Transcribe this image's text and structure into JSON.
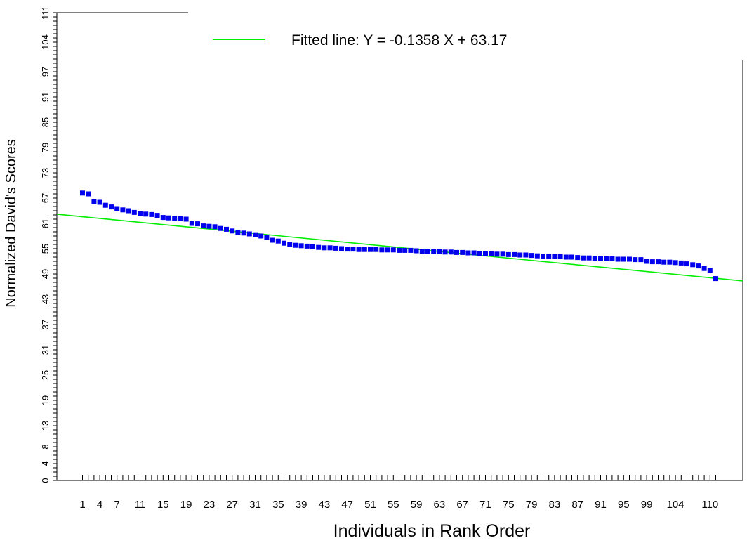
{
  "chart_data": {
    "type": "scatter",
    "xlabel": "Individuals in Rank Order",
    "ylabel": "Normalized David's Scores",
    "legend": {
      "line_label": "Fitted line:  Y =  -0.1358 X + 63.17",
      "placement": "top-center"
    },
    "x_tick_labels": [
      "1",
      "4",
      "7",
      "11",
      "15",
      "19",
      "23",
      "27",
      "31",
      "35",
      "39",
      "43",
      "47",
      "51",
      "55",
      "59",
      "63",
      "67",
      "71",
      "75",
      "79",
      "83",
      "87",
      "91",
      "95",
      "99",
      "104",
      "110"
    ],
    "y_tick_labels": [
      "0",
      "4",
      "8",
      "13",
      "19",
      "25",
      "31",
      "37",
      "43",
      "49",
      "55",
      "61",
      "67",
      "73",
      "79",
      "85",
      "91",
      "97",
      "104",
      "111"
    ],
    "xlim": [
      0,
      116.5
    ],
    "ylim": [
      0,
      111
    ],
    "colors": {
      "points": "#0000ee",
      "fit_line": "#00ee00",
      "axis": "#000000"
    },
    "fit_line": {
      "slope": -0.1358,
      "intercept": 63.17
    },
    "series": [
      {
        "x": [
          1,
          2,
          3,
          4,
          5,
          6,
          7,
          8,
          9,
          10,
          11,
          12,
          13,
          14,
          15,
          16,
          17,
          18,
          19,
          20,
          21,
          22,
          23,
          24,
          25,
          26,
          27,
          28,
          29,
          30,
          31,
          32,
          33,
          34,
          35,
          36,
          37,
          38,
          39,
          40,
          41,
          42,
          43,
          44,
          45,
          46,
          47,
          48,
          49,
          50,
          51,
          52,
          53,
          54,
          55,
          56,
          57,
          58,
          59,
          60,
          61,
          62,
          63,
          64,
          65,
          66,
          67,
          68,
          69,
          70,
          71,
          72,
          73,
          74,
          75,
          76,
          77,
          78,
          79,
          80,
          81,
          82,
          83,
          84,
          85,
          86,
          87,
          88,
          89,
          90,
          91,
          92,
          93,
          94,
          95,
          96,
          97,
          98,
          99,
          100,
          101,
          102,
          103,
          104,
          105,
          106,
          107,
          108,
          109,
          110,
          111
        ],
        "values": [
          68.2,
          68.0,
          66.1,
          66.0,
          65.3,
          64.9,
          64.5,
          64.2,
          64.0,
          63.6,
          63.3,
          63.2,
          63.1,
          62.9,
          62.4,
          62.3,
          62.2,
          62.1,
          62.0,
          61.0,
          60.9,
          60.4,
          60.3,
          60.2,
          59.8,
          59.6,
          59.2,
          58.9,
          58.7,
          58.5,
          58.3,
          58.0,
          57.7,
          57.0,
          56.8,
          56.3,
          56.0,
          55.8,
          55.7,
          55.6,
          55.5,
          55.3,
          55.2,
          55.2,
          55.1,
          55.0,
          54.9,
          54.9,
          54.8,
          54.8,
          54.8,
          54.8,
          54.7,
          54.7,
          54.7,
          54.6,
          54.6,
          54.6,
          54.5,
          54.4,
          54.4,
          54.3,
          54.3,
          54.2,
          54.2,
          54.1,
          54.1,
          54.0,
          54.0,
          53.9,
          53.8,
          53.8,
          53.7,
          53.7,
          53.6,
          53.6,
          53.5,
          53.5,
          53.4,
          53.3,
          53.2,
          53.2,
          53.1,
          53.1,
          53.0,
          53.0,
          52.9,
          52.8,
          52.8,
          52.7,
          52.7,
          52.6,
          52.6,
          52.5,
          52.5,
          52.5,
          52.4,
          52.4,
          52.0,
          51.9,
          51.9,
          51.8,
          51.8,
          51.7,
          51.6,
          51.4,
          51.2,
          50.9,
          50.3,
          49.9,
          47.9
        ]
      }
    ]
  }
}
